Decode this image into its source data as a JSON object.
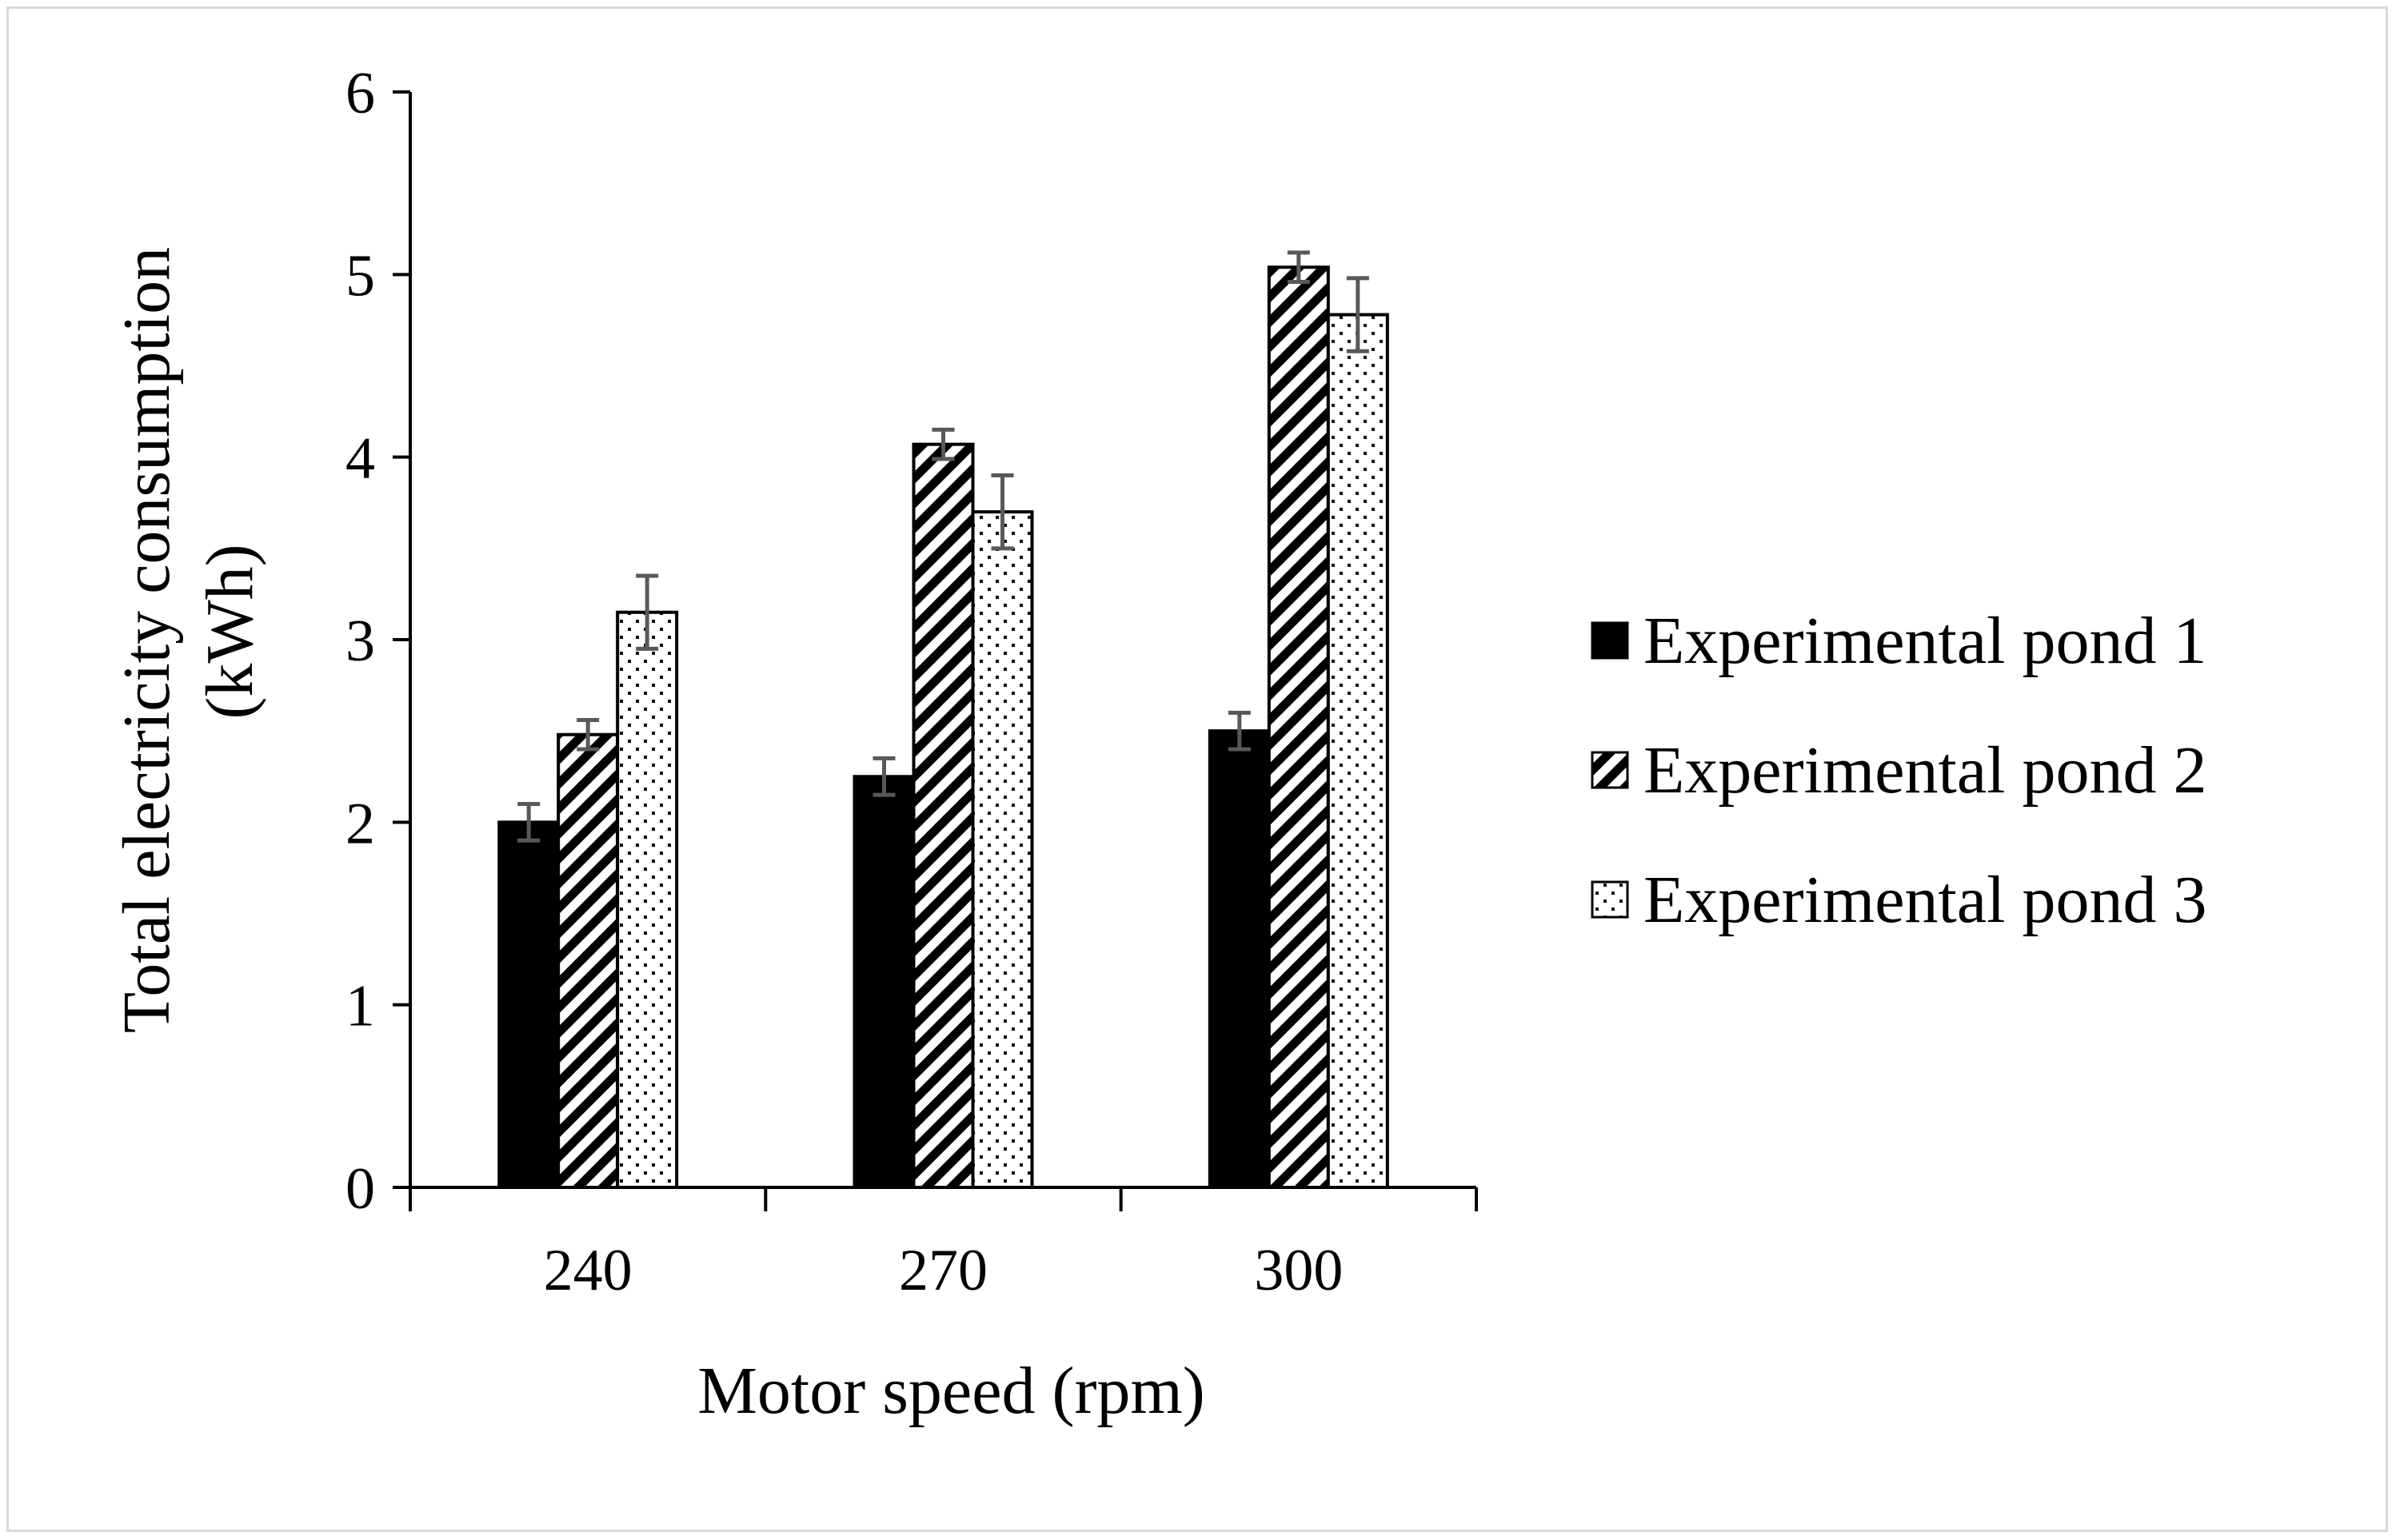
{
  "chart_data": {
    "type": "bar",
    "title": "",
    "xlabel": "Motor speed (rpm)",
    "ylabel": "Total electricity consumption (kWh)",
    "ylabel_lines": [
      "Total electricity consumption",
      "(kWh)"
    ],
    "ylim": [
      0,
      6
    ],
    "yticks": [
      0,
      1,
      2,
      3,
      4,
      5,
      6
    ],
    "categories": [
      "240",
      "270",
      "300"
    ],
    "grid": false,
    "legend_position": "right",
    "series": [
      {
        "name": "Experimental pond 1",
        "pattern": "solid-black",
        "values": [
          2.0,
          2.25,
          2.5
        ],
        "errors": [
          0.1,
          0.1,
          0.1
        ]
      },
      {
        "name": "Experimental pond 2",
        "pattern": "diagonal-hatch",
        "values": [
          2.48,
          4.07,
          5.04
        ],
        "errors": [
          0.08,
          0.08,
          0.08
        ]
      },
      {
        "name": "Experimental pond 3",
        "pattern": "dotted",
        "values": [
          3.15,
          3.7,
          4.78
        ],
        "errors": [
          0.2,
          0.2,
          0.2
        ]
      }
    ]
  },
  "colors": {
    "bar_outline": "#000000",
    "error_bar": "#595959",
    "frame_border": "#d9d9d9"
  }
}
